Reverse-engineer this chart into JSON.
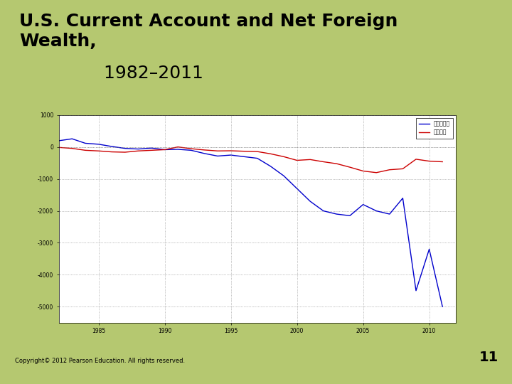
{
  "copyright": "Copyright© 2012 Pearson Education. All rights reserved.",
  "page_number": "11",
  "background_color": "#b5c870",
  "plot_background": "#ffffff",
  "slide_background": "#ffffff",
  "legend_label_blue": "净外国财富",
  "legend_label_red": "经常账户",
  "blue_color": "#0000cc",
  "red_color": "#cc0000",
  "xlim": [
    1982,
    2012
  ],
  "ylim": [
    -5500,
    1000
  ],
  "yticks": [
    1000,
    0,
    -1000,
    -2000,
    -3000,
    -4000,
    -5000
  ],
  "xticks": [
    1985,
    1990,
    1995,
    2000,
    2005,
    2010
  ],
  "years": [
    1982,
    1983,
    1984,
    1985,
    1986,
    1987,
    1988,
    1989,
    1990,
    1991,
    1992,
    1993,
    1994,
    1995,
    1996,
    1997,
    1998,
    1999,
    2000,
    2001,
    2002,
    2003,
    2004,
    2005,
    2006,
    2007,
    2008,
    2009,
    2010,
    2011
  ],
  "net_foreign_wealth": [
    200,
    260,
    120,
    90,
    20,
    -40,
    -60,
    -30,
    -80,
    -70,
    -100,
    -200,
    -280,
    -250,
    -300,
    -350,
    -600,
    -900,
    -1300,
    -1700,
    -2000,
    -2100,
    -2150,
    -1800,
    -2000,
    -2100,
    -1600,
    -4500,
    -3200,
    -5000
  ],
  "current_account": [
    -10,
    -40,
    -100,
    -120,
    -150,
    -160,
    -120,
    -100,
    -80,
    5,
    -50,
    -90,
    -120,
    -115,
    -130,
    -140,
    -210,
    -300,
    -415,
    -390,
    -460,
    -520,
    -630,
    -750,
    -800,
    -710,
    -680,
    -380,
    -440,
    -460
  ],
  "title_bold": "U.S. Current Account and Net Foreign\nWealth,",
  "title_normal": " 1982–2011",
  "title_fontsize": 18,
  "title_year_fontsize": 18
}
